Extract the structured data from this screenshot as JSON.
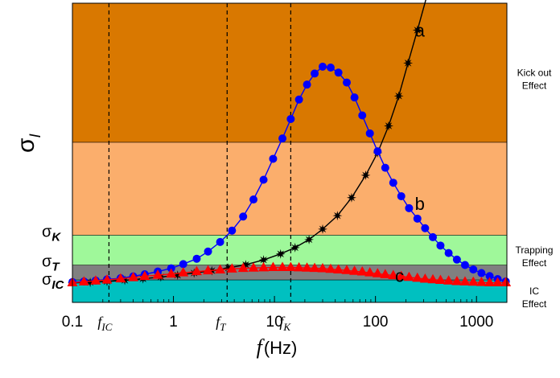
{
  "chart_data": {
    "type": "line",
    "xscale": "log",
    "xlim": [
      0.1,
      2000
    ],
    "ylim": [
      0,
      100
    ],
    "grid": false,
    "x_ticks": [
      "0.1",
      "1",
      "10",
      "100",
      "1000"
    ],
    "x_tick_values": [
      0.1,
      1,
      10,
      100,
      1000
    ],
    "xlabel": {
      "symbol": "f",
      "unit": "(Hz)"
    },
    "ylabel": {
      "base": "σ",
      "sub": "I"
    },
    "regions": [
      {
        "name": "Kick out Effect",
        "label_lines": [
          "Kick out",
          "Effect"
        ],
        "y0": 53.5,
        "y1": 100,
        "color": "#d97800"
      },
      {
        "name": "middle",
        "label_lines": [],
        "y0": 22.5,
        "y1": 53.5,
        "color": "#fbae6c"
      },
      {
        "name": "Trapping Effect",
        "label_lines": [
          "Trapping",
          "Effect"
        ],
        "y0": 12.5,
        "y1": 22.5,
        "color": "#9ff89a"
      },
      {
        "name": "grey",
        "label_lines": [],
        "y0": 7.5,
        "y1": 12.5,
        "color": "#808080"
      },
      {
        "name": "IC Effect",
        "label_lines": [
          "IC",
          "Effect"
        ],
        "y0": 0,
        "y1": 7.5,
        "color": "#00c0c0"
      }
    ],
    "y_level_labels": [
      {
        "base": "σ",
        "sub": "K",
        "y": 22.5
      },
      {
        "base": "σ",
        "sub": "T",
        "y": 12.5
      },
      {
        "base": "σ",
        "sub": "IC",
        "y": 6.5
      }
    ],
    "vlines": [
      {
        "x": 0.23,
        "base": "f",
        "sub": "IC"
      },
      {
        "x": 3.4,
        "base": "f",
        "sub": "T"
      },
      {
        "x": 14.5,
        "base": "f",
        "sub": "K"
      }
    ],
    "series": [
      {
        "name": "a",
        "color": "#000000",
        "marker": "star",
        "label_pos": {
          "x": 220,
          "y": 91
        },
        "points": [
          [
            0.1,
            6.5
          ],
          [
            0.15,
            6.7
          ],
          [
            0.22,
            7.0
          ],
          [
            0.33,
            7.4
          ],
          [
            0.5,
            7.9
          ],
          [
            0.75,
            8.5
          ],
          [
            1.1,
            9.1
          ],
          [
            1.6,
            9.8
          ],
          [
            2.4,
            10.6
          ],
          [
            3.5,
            11.5
          ],
          [
            5.2,
            12.6
          ],
          [
            7.8,
            14.2
          ],
          [
            11.5,
            16.2
          ],
          [
            16,
            18.3
          ],
          [
            22,
            21
          ],
          [
            30,
            24.5
          ],
          [
            42,
            29
          ],
          [
            58,
            35
          ],
          [
            80,
            42.5
          ],
          [
            105,
            50
          ],
          [
            135,
            59
          ],
          [
            170,
            69
          ],
          [
            210,
            80
          ],
          [
            260,
            91
          ],
          [
            320,
            102
          ]
        ]
      },
      {
        "name": "b",
        "color": "#0000ff",
        "marker": "circle",
        "label_pos": {
          "x": 220,
          "y": 33
        },
        "points": [
          [
            0.1,
            6.8
          ],
          [
            0.13,
            7.0
          ],
          [
            0.17,
            7.3
          ],
          [
            0.22,
            7.7
          ],
          [
            0.3,
            8.1
          ],
          [
            0.4,
            8.7
          ],
          [
            0.52,
            9.4
          ],
          [
            0.7,
            10.3
          ],
          [
            0.95,
            11.4
          ],
          [
            1.25,
            12.8
          ],
          [
            1.7,
            14.6
          ],
          [
            2.2,
            17
          ],
          [
            2.9,
            20.2
          ],
          [
            3.8,
            24
          ],
          [
            4.9,
            28.7
          ],
          [
            6.2,
            34.4
          ],
          [
            7.8,
            41
          ],
          [
            9.7,
            48
          ],
          [
            12,
            54.8
          ],
          [
            14.5,
            61.3
          ],
          [
            17.5,
            67.8
          ],
          [
            21,
            72.8
          ],
          [
            25,
            76.5
          ],
          [
            30,
            78.8
          ],
          [
            36,
            78.5
          ],
          [
            43,
            76.8
          ],
          [
            52,
            73.5
          ],
          [
            62,
            68.5
          ],
          [
            74,
            62.5
          ],
          [
            88,
            56.5
          ],
          [
            105,
            50.5
          ],
          [
            125,
            45
          ],
          [
            150,
            40
          ],
          [
            180,
            35.5
          ],
          [
            215,
            31.5
          ],
          [
            260,
            28
          ],
          [
            310,
            24.8
          ],
          [
            370,
            21.8
          ],
          [
            440,
            19
          ],
          [
            530,
            16.5
          ],
          [
            640,
            14.3
          ],
          [
            770,
            12.5
          ],
          [
            930,
            11
          ],
          [
            1120,
            9.8
          ],
          [
            1350,
            8.8
          ],
          [
            1620,
            7.8
          ],
          [
            1950,
            7.0
          ]
        ]
      },
      {
        "name": "c",
        "color": "#ff0000",
        "marker": "triangle",
        "label_pos": {
          "x": 140,
          "y": 9
        },
        "points": [
          [
            0.1,
            6.6
          ],
          [
            0.13,
            6.9
          ],
          [
            0.17,
            7.2
          ],
          [
            0.22,
            7.5
          ],
          [
            0.3,
            7.9
          ],
          [
            0.4,
            8.3
          ],
          [
            0.52,
            8.7
          ],
          [
            0.7,
            9.1
          ],
          [
            0.95,
            9.5
          ],
          [
            1.25,
            9.9
          ],
          [
            1.7,
            10.3
          ],
          [
            2.2,
            10.6
          ],
          [
            2.9,
            10.9
          ],
          [
            3.8,
            11.2
          ],
          [
            4.9,
            11.4
          ],
          [
            6.2,
            11.5
          ],
          [
            7.8,
            11.6
          ],
          [
            9.7,
            11.7
          ],
          [
            12,
            11.7
          ],
          [
            14.5,
            11.7
          ],
          [
            17.5,
            11.6
          ],
          [
            21,
            11.5
          ],
          [
            25,
            11.4
          ],
          [
            30,
            11.3
          ],
          [
            36,
            11.1
          ],
          [
            43,
            10.9
          ],
          [
            52,
            10.7
          ],
          [
            62,
            10.4
          ],
          [
            74,
            10.2
          ],
          [
            88,
            9.9
          ],
          [
            105,
            9.6
          ],
          [
            125,
            9.3
          ],
          [
            150,
            9.0
          ],
          [
            180,
            8.7
          ],
          [
            215,
            8.4
          ],
          [
            260,
            8.1
          ],
          [
            310,
            7.8
          ],
          [
            370,
            7.6
          ],
          [
            440,
            7.4
          ],
          [
            530,
            7.2
          ],
          [
            640,
            7.0
          ],
          [
            770,
            6.9
          ],
          [
            930,
            6.8
          ],
          [
            1120,
            6.7
          ],
          [
            1350,
            6.6
          ],
          [
            1620,
            6.6
          ],
          [
            1950,
            6.6
          ]
        ]
      }
    ]
  }
}
